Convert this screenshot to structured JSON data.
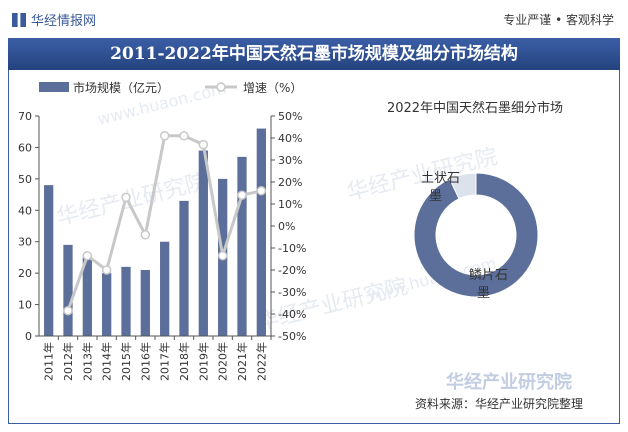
{
  "header": {
    "logo_text": "华经情报网",
    "slogan": "专业严谨 • 客观科学",
    "title": "2011-2022年中国天然石墨市场规模及细分市场结构"
  },
  "colors": {
    "bar": "#5b6f9a",
    "line": "#c8c8c8",
    "donut_main": "#5b6f9a",
    "donut_minor": "#dce2ec",
    "title_bg": "#2c4c8c"
  },
  "chart_data": [
    {
      "type": "bar",
      "categories": [
        "2011年",
        "2012年",
        "2013年",
        "2014年",
        "2015年",
        "2016年",
        "2017年",
        "2018年",
        "2019年",
        "2020年",
        "2021年",
        "2022年"
      ],
      "series": [
        {
          "name": "市场规模（亿元）",
          "type": "bar",
          "axis": "left",
          "values": [
            48,
            29,
            25,
            20,
            22,
            21,
            30,
            43,
            59,
            50,
            57,
            66
          ]
        },
        {
          "name": "增速（%）",
          "type": "line",
          "axis": "right",
          "values": [
            null,
            -38.5,
            -13.5,
            -20,
            13,
            -4,
            41,
            41,
            37,
            -13.5,
            14,
            16
          ]
        }
      ],
      "ylim_left": [
        0,
        70
      ],
      "yticks_left": [
        "0",
        "10",
        "20",
        "30",
        "40",
        "50",
        "60",
        "70"
      ],
      "ylim_right": [
        -50,
        50
      ],
      "yticks_right": [
        "-50%",
        "-40%",
        "-30%",
        "-20%",
        "-10%",
        "0%",
        "10%",
        "20%",
        "30%",
        "40%",
        "50%"
      ],
      "legend_position": "top-left",
      "grid": false
    },
    {
      "type": "pie",
      "title": "2022年中国天然石墨细分市场",
      "labels": [
        "鳞片石墨",
        "土状石墨"
      ],
      "values": [
        93,
        7
      ],
      "donut": true
    }
  ],
  "watermarks": [
    "华经产业研究院",
    "www.huaon.com"
  ],
  "footer": {
    "source": "资料来源：华经产业研究院整理",
    "brand": "华经产业研究院"
  }
}
